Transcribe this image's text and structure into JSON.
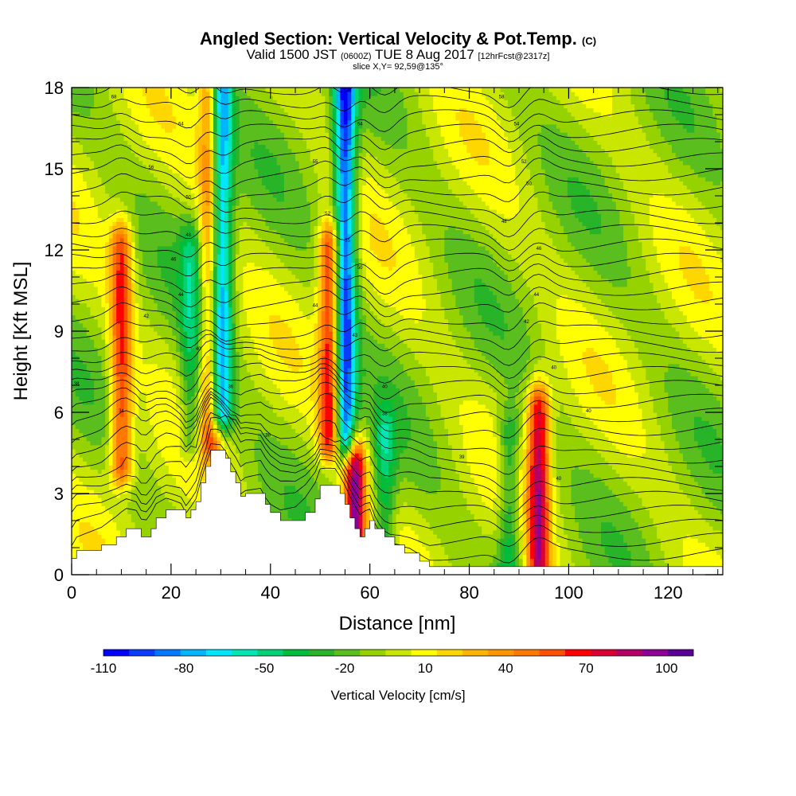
{
  "header": {
    "title_main": "Angled Section: Vertical Velocity & Pot.Temp.",
    "title_unit": "(C)",
    "valid_prefix": "Valid 1500 JST",
    "valid_utc": "(0600Z)",
    "valid_date": "TUE 8 Aug 2017",
    "forecast": "[12hrFcst@2317z]",
    "slice": "slice X,Y= 92,59@135°"
  },
  "chart_data": {
    "type": "heatmap",
    "xlabel": "Distance [nm]",
    "ylabel": "Height [Kft MSL]",
    "xlim": [
      0,
      131
    ],
    "ylim": [
      0,
      18
    ],
    "x_ticks": [
      0,
      20,
      40,
      60,
      80,
      100,
      120
    ],
    "y_ticks": [
      0,
      3,
      6,
      9,
      12,
      15,
      18
    ],
    "colorbar": {
      "label": "Vertical Velocity [cm/s]",
      "tick_labels": [
        "-110",
        "-80",
        "-50",
        "-20",
        "10",
        "40",
        "70",
        "100"
      ],
      "tick_values": [
        -110,
        -80,
        -50,
        -20,
        10,
        40,
        70,
        100
      ],
      "bins": [
        -110,
        -100,
        -90,
        -80,
        -70,
        -60,
        -50,
        -40,
        -30,
        -20,
        -10,
        0,
        10,
        20,
        30,
        40,
        50,
        60,
        70,
        80,
        90,
        100,
        110
      ],
      "colors": [
        "#0000ff",
        "#0a3cff",
        "#0078ff",
        "#00b4ff",
        "#00e6ff",
        "#00e6b4",
        "#00d278",
        "#00be3c",
        "#28b428",
        "#5abe1e",
        "#96d200",
        "#c8e600",
        "#ffff00",
        "#ffd700",
        "#ffb400",
        "#ff9600",
        "#ff7800",
        "#ff5000",
        "#ff0000",
        "#dc0032",
        "#b40064",
        "#8c0096",
        "#5a0096"
      ]
    },
    "updrafts": [
      {
        "x": 10,
        "z_bottom": 4,
        "z_top": 12,
        "peak": 70
      },
      {
        "x": 28,
        "z_bottom": 5,
        "z_top": 18,
        "peak": 60
      },
      {
        "x": 52,
        "z_bottom": 5,
        "z_top": 12,
        "peak": 80
      },
      {
        "x": 57,
        "z_bottom": 1.5,
        "z_top": 4,
        "peak": 100
      },
      {
        "x": 94,
        "z_bottom": 0.3,
        "z_top": 6,
        "peak": 90
      }
    ],
    "downdrafts": [
      {
        "x": 30,
        "z_bottom": 6,
        "z_top": 18,
        "peak": -90
      },
      {
        "x": 55,
        "z_bottom": 5,
        "z_top": 18,
        "peak": -100
      },
      {
        "x": 24,
        "z_bottom": 5,
        "z_top": 12,
        "peak": -35
      },
      {
        "x": 63,
        "z_bottom": 1,
        "z_top": 5,
        "peak": -40
      },
      {
        "x": 88,
        "z_bottom": 0.5,
        "z_top": 5,
        "peak": -40
      }
    ],
    "terrain": [
      [
        0,
        0.6
      ],
      [
        1,
        0.9
      ],
      [
        6,
        1.1
      ],
      [
        9,
        1.4
      ],
      [
        11,
        1.7
      ],
      [
        13,
        1.7
      ],
      [
        14,
        1.4
      ],
      [
        15,
        1.4
      ],
      [
        16,
        1.7
      ],
      [
        17,
        2.1
      ],
      [
        19,
        2.4
      ],
      [
        22,
        2.4
      ],
      [
        23,
        2.1
      ],
      [
        24,
        2.4
      ],
      [
        25,
        2.7
      ],
      [
        26,
        3.4
      ],
      [
        27,
        4.0
      ],
      [
        28,
        4.6
      ],
      [
        30,
        4.6
      ],
      [
        31,
        4.3
      ],
      [
        32,
        3.8
      ],
      [
        33,
        3.4
      ],
      [
        34,
        2.9
      ],
      [
        35,
        3.0
      ],
      [
        38,
        3.0
      ],
      [
        39,
        2.6
      ],
      [
        40,
        2.3
      ],
      [
        42,
        2.0
      ],
      [
        45,
        2.0
      ],
      [
        47,
        2.3
      ],
      [
        49,
        2.8
      ],
      [
        50,
        3.3
      ],
      [
        53,
        3.3
      ],
      [
        54,
        3.0
      ],
      [
        55,
        2.6
      ],
      [
        56,
        2.1
      ],
      [
        57,
        1.7
      ],
      [
        58,
        1.4
      ],
      [
        59,
        1.7
      ],
      [
        60,
        2.0
      ],
      [
        61,
        1.7
      ],
      [
        63,
        1.4
      ],
      [
        65,
        1.1
      ],
      [
        67,
        0.8
      ],
      [
        70,
        0.5
      ],
      [
        72,
        0.3
      ],
      [
        131,
        0.3
      ]
    ],
    "isentrope_labels": [
      {
        "x": 8.5,
        "z": 17.6,
        "text": "68"
      },
      {
        "x": 22,
        "z": 16.6,
        "text": "64"
      },
      {
        "x": 16,
        "z": 15.0,
        "text": "56"
      },
      {
        "x": 23.5,
        "z": 13.9,
        "text": "50"
      },
      {
        "x": 23.5,
        "z": 12.5,
        "text": "48"
      },
      {
        "x": 20.5,
        "z": 11.6,
        "text": "46"
      },
      {
        "x": 22,
        "z": 10.3,
        "text": "44"
      },
      {
        "x": 15,
        "z": 9.5,
        "text": "42"
      },
      {
        "x": 25.5,
        "z": 8.3,
        "text": "40"
      },
      {
        "x": 1,
        "z": 7.0,
        "text": "38"
      },
      {
        "x": 10,
        "z": 6.0,
        "text": "34"
      },
      {
        "x": 32,
        "z": 6.9,
        "text": "36"
      },
      {
        "x": 39.5,
        "z": 5.1,
        "text": "38"
      },
      {
        "x": 49,
        "z": 15.2,
        "text": "55"
      },
      {
        "x": 51.5,
        "z": 13.3,
        "text": "52"
      },
      {
        "x": 58,
        "z": 16.6,
        "text": "64"
      },
      {
        "x": 55.5,
        "z": 12.3,
        "text": "55"
      },
      {
        "x": 58,
        "z": 11.3,
        "text": "50"
      },
      {
        "x": 49,
        "z": 9.9,
        "text": "44"
      },
      {
        "x": 57,
        "z": 8.8,
        "text": "43"
      },
      {
        "x": 63,
        "z": 6.9,
        "text": "40"
      },
      {
        "x": 63,
        "z": 5.9,
        "text": "38"
      },
      {
        "x": 78.5,
        "z": 4.3,
        "text": "39"
      },
      {
        "x": 86.5,
        "z": 17.6,
        "text": "58"
      },
      {
        "x": 89.5,
        "z": 16.6,
        "text": "54"
      },
      {
        "x": 91,
        "z": 15.2,
        "text": "52"
      },
      {
        "x": 92,
        "z": 14.4,
        "text": "50"
      },
      {
        "x": 87,
        "z": 13.0,
        "text": "48"
      },
      {
        "x": 94,
        "z": 12.0,
        "text": "46"
      },
      {
        "x": 93.5,
        "z": 10.3,
        "text": "44"
      },
      {
        "x": 91.5,
        "z": 9.3,
        "text": "42"
      },
      {
        "x": 97,
        "z": 7.6,
        "text": "40"
      },
      {
        "x": 104,
        "z": 6.0,
        "text": "40"
      },
      {
        "x": 98,
        "z": 3.5,
        "text": "40"
      }
    ]
  }
}
